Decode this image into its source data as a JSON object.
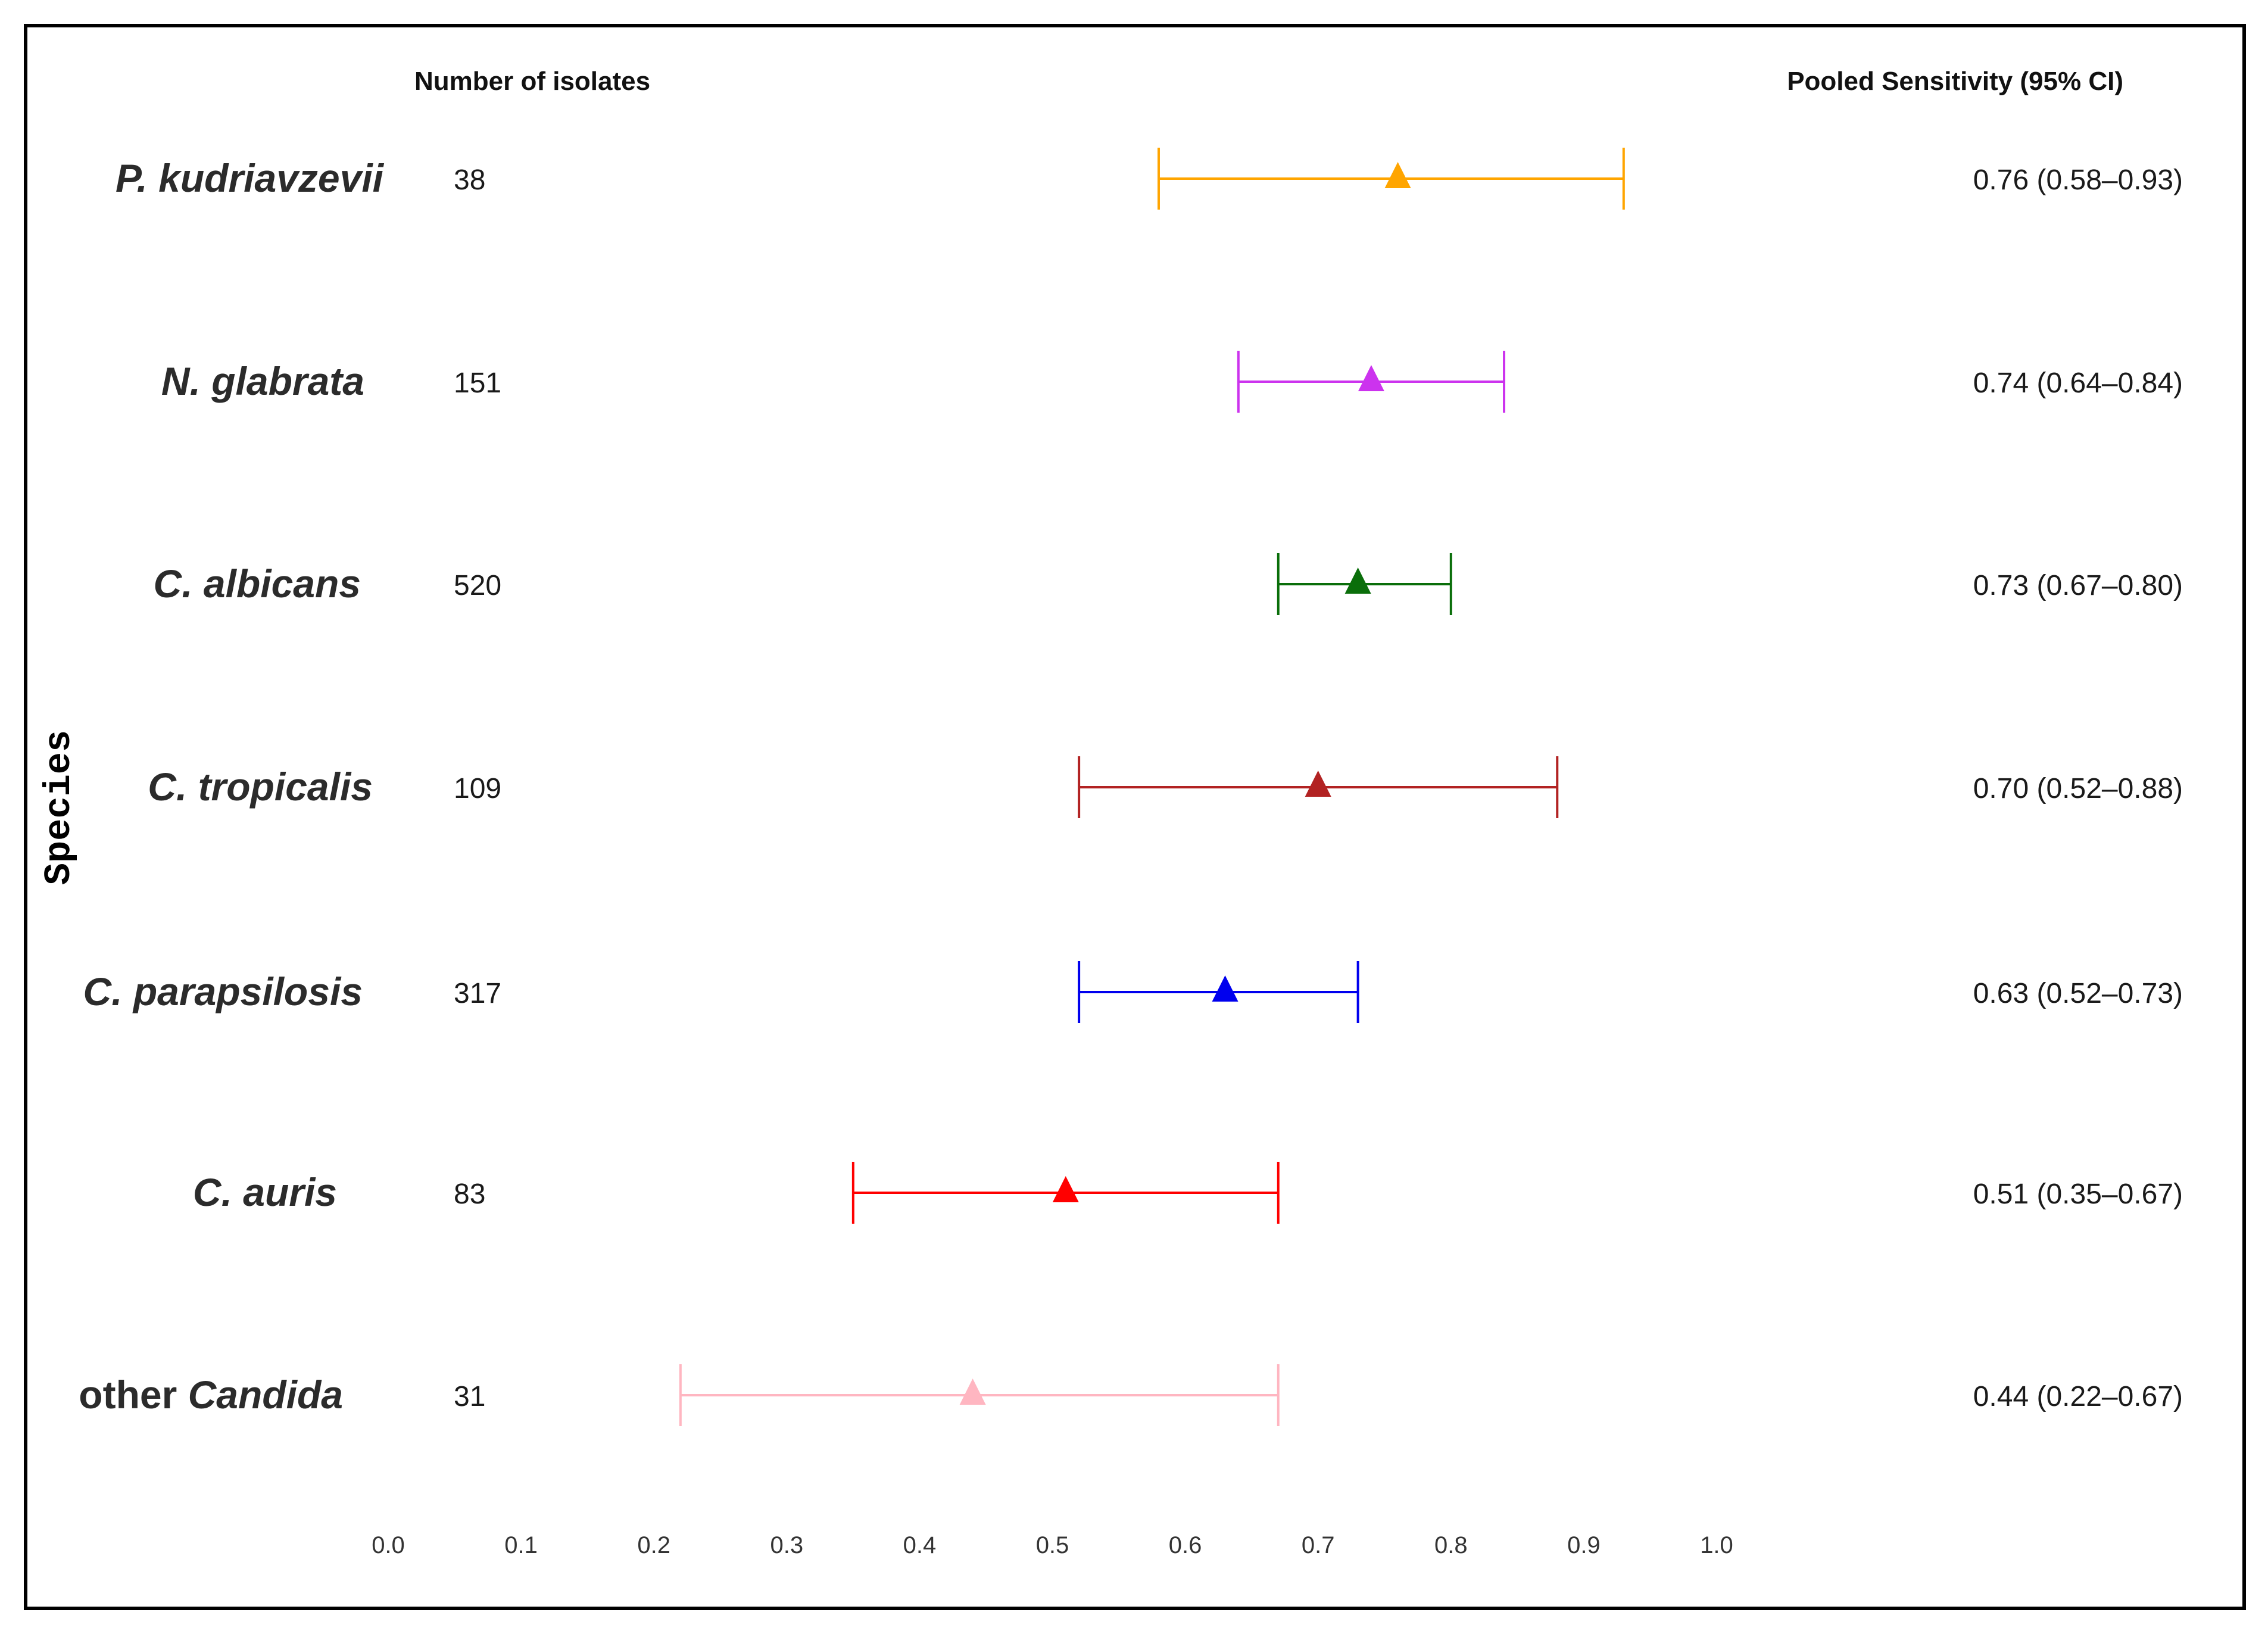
{
  "chart_data": {
    "type": "forest",
    "ylabel": "Species",
    "header_count": "Number of isolates",
    "header_ci": "Pooled Sensitivity (95% CI)",
    "x_ticks": [
      "0.0",
      "0.1",
      "0.2",
      "0.3",
      "0.4",
      "0.5",
      "0.6",
      "0.7",
      "0.8",
      "0.9",
      "1.0"
    ],
    "xlim": [
      0.0,
      1.0
    ],
    "rows": [
      {
        "prefix": "",
        "name": "P. kudriavzevii",
        "count": "38",
        "estimate": 0.76,
        "lower": 0.58,
        "upper": 0.93,
        "ci_label": "0.76 (0.58–0.93)",
        "color": "#FFA500"
      },
      {
        "prefix": "",
        "name": "N. glabrata",
        "count": "151",
        "estimate": 0.74,
        "lower": 0.64,
        "upper": 0.84,
        "ci_label": "0.74 (0.64–0.84)",
        "color": "#CC33EE"
      },
      {
        "prefix": "",
        "name": "C. albicans",
        "count": "520",
        "estimate": 0.73,
        "lower": 0.67,
        "upper": 0.8,
        "ci_label": "0.73 (0.67–0.80)",
        "color": "#0A6E0A"
      },
      {
        "prefix": "",
        "name": "C. tropicalis",
        "count": "109",
        "estimate": 0.7,
        "lower": 0.52,
        "upper": 0.88,
        "ci_label": "0.70 (0.52–0.88)",
        "color": "#B22222"
      },
      {
        "prefix": "",
        "name": "C. parapsilosis",
        "count": "317",
        "estimate": 0.63,
        "lower": 0.52,
        "upper": 0.73,
        "ci_label": "0.63 (0.52–0.73)",
        "color": "#0000EE"
      },
      {
        "prefix": "",
        "name": "C. auris",
        "count": "83",
        "estimate": 0.51,
        "lower": 0.35,
        "upper": 0.67,
        "ci_label": "0.51 (0.35–0.67)",
        "color": "#FF0000"
      },
      {
        "prefix": "other ",
        "name": "Candida",
        "count": "31",
        "estimate": 0.44,
        "lower": 0.22,
        "upper": 0.67,
        "ci_label": "0.44 (0.22–0.67)",
        "color": "#FFB6C1"
      }
    ]
  }
}
